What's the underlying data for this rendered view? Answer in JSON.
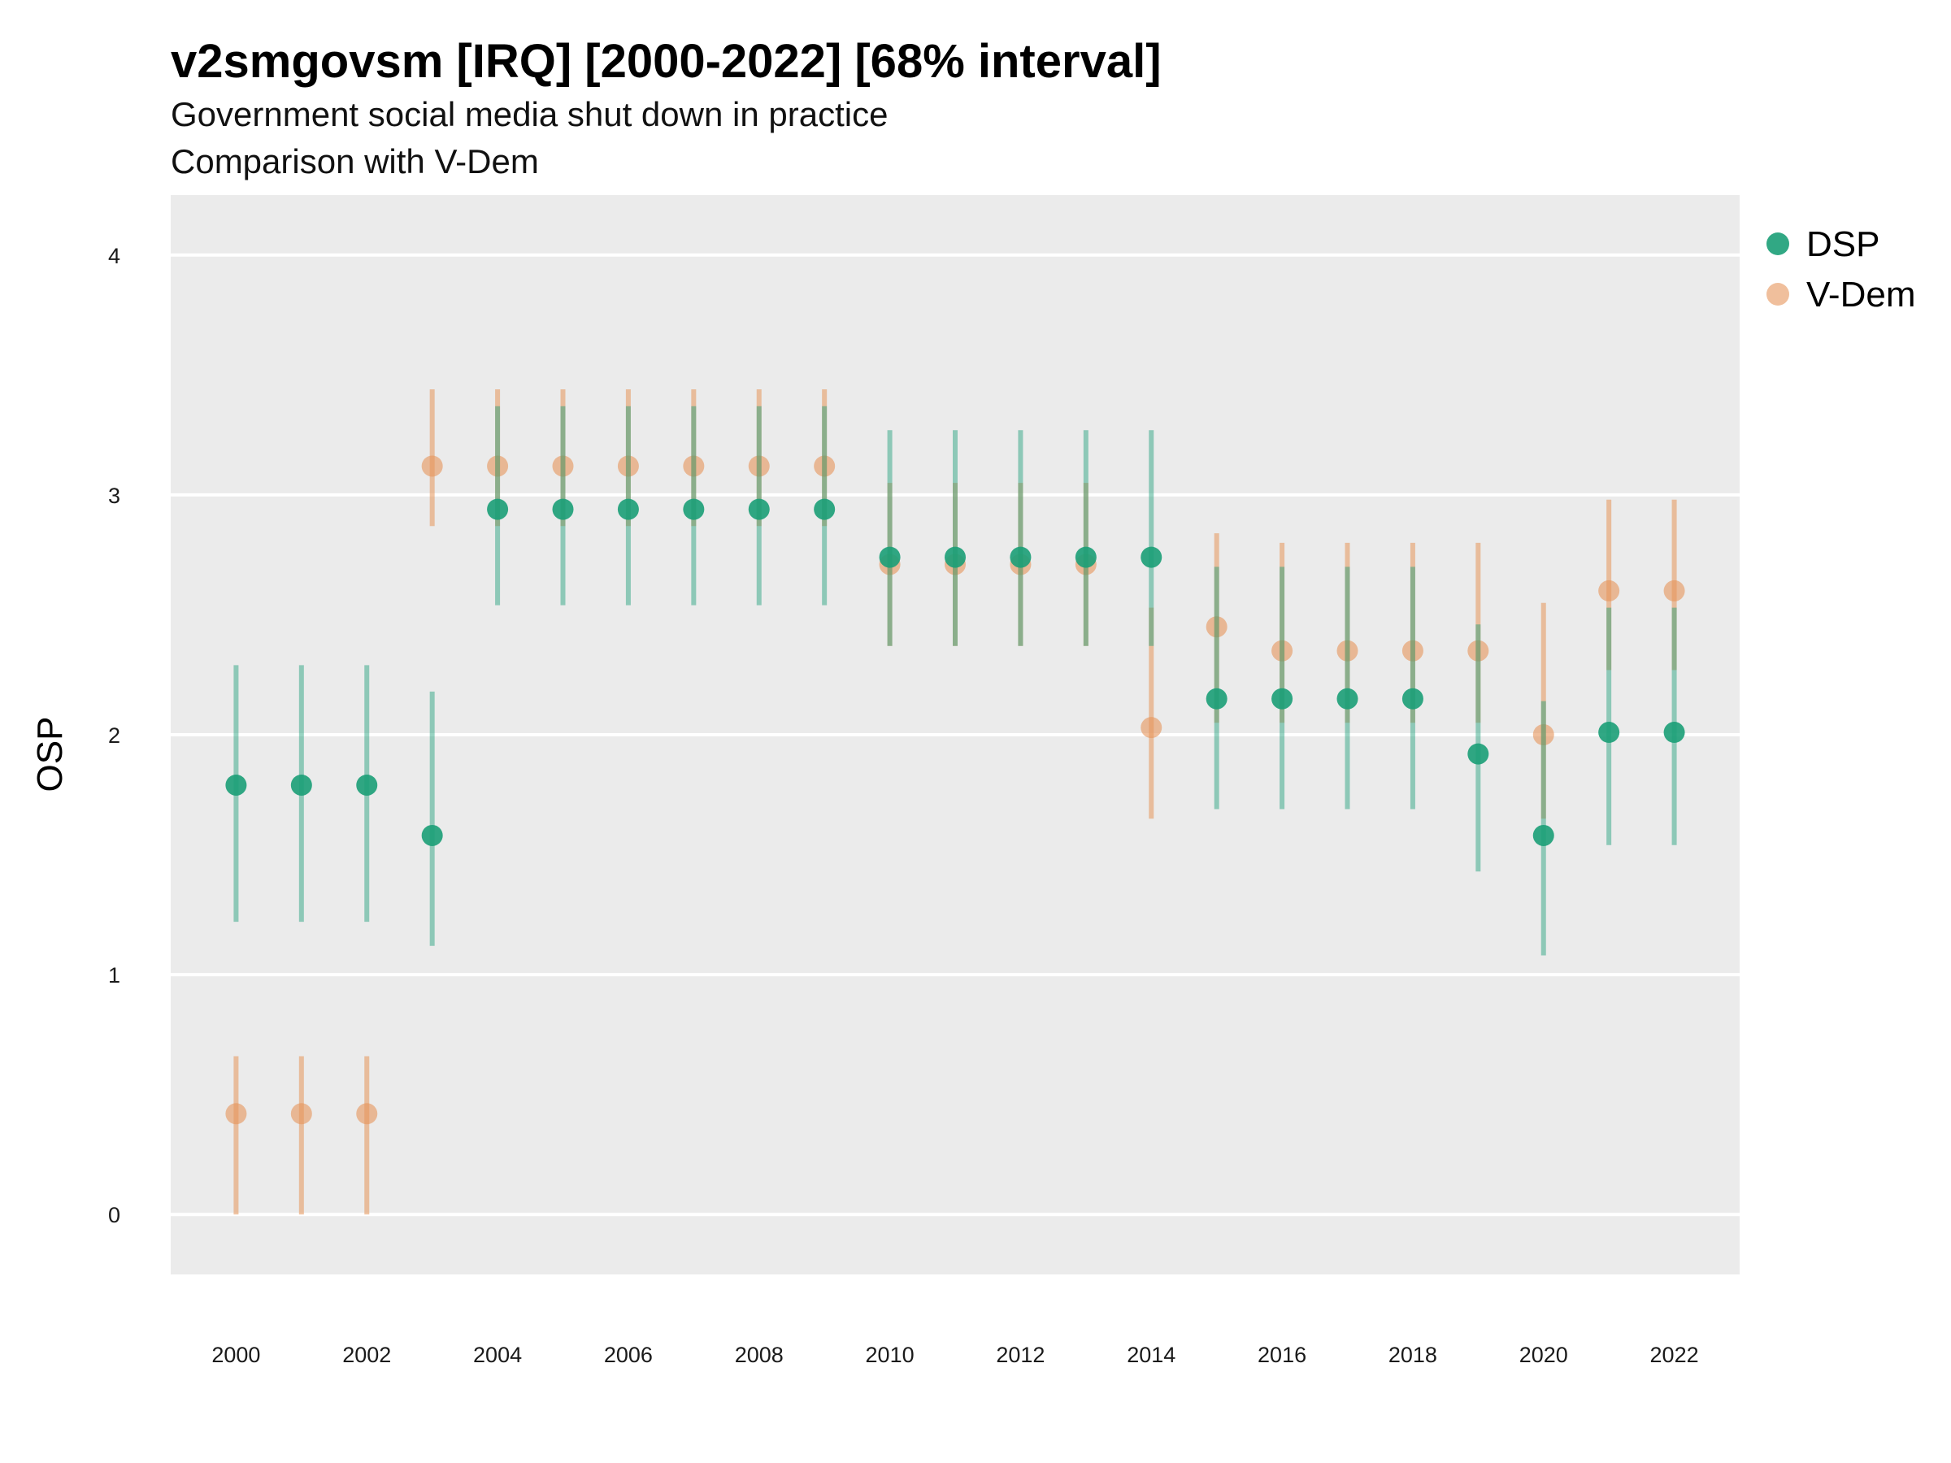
{
  "title": "v2smgovsm [IRQ] [2000-2022] [68% interval]",
  "subtitle_lines": [
    "Government social media shut down in practice",
    "Comparison with V-Dem"
  ],
  "colors": {
    "DSP": "#1b9e77",
    "V-Dem": "#e6955a",
    "panel": "#ebebeb",
    "grid": "#ffffff"
  },
  "chart_data": {
    "type": "scatter",
    "title": "v2smgovsm [IRQ] [2000-2022] [68% interval]",
    "subtitle": "Government social media shut down in practice / Comparison with V-Dem",
    "ylabel": "OSP",
    "xlabel": "",
    "ylim": [
      -0.25,
      4.25
    ],
    "yticks": [
      0,
      1,
      2,
      3,
      4
    ],
    "xticks": [
      2000,
      2002,
      2004,
      2006,
      2008,
      2010,
      2012,
      2014,
      2016,
      2018,
      2020,
      2022
    ],
    "grid": true,
    "legend_position": "right",
    "x": [
      2000,
      2001,
      2002,
      2003,
      2004,
      2005,
      2006,
      2007,
      2008,
      2009,
      2010,
      2011,
      2012,
      2013,
      2014,
      2015,
      2016,
      2017,
      2018,
      2019,
      2020,
      2021,
      2022
    ],
    "series": [
      {
        "name": "DSP",
        "color": "#1b9e77",
        "values": [
          1.79,
          1.79,
          1.79,
          1.58,
          2.94,
          2.94,
          2.94,
          2.94,
          2.94,
          2.94,
          2.74,
          2.74,
          2.74,
          2.74,
          2.74,
          2.15,
          2.15,
          2.15,
          2.15,
          1.92,
          1.58,
          2.01,
          2.01
        ],
        "lower": [
          1.22,
          1.22,
          1.22,
          1.12,
          2.54,
          2.54,
          2.54,
          2.54,
          2.54,
          2.54,
          2.37,
          2.37,
          2.37,
          2.37,
          2.37,
          1.69,
          1.69,
          1.69,
          1.69,
          1.43,
          1.08,
          1.54,
          1.54
        ],
        "upper": [
          2.29,
          2.29,
          2.29,
          2.18,
          3.37,
          3.37,
          3.37,
          3.37,
          3.37,
          3.37,
          3.27,
          3.27,
          3.27,
          3.27,
          3.27,
          2.7,
          2.7,
          2.7,
          2.7,
          2.46,
          2.14,
          2.53,
          2.53
        ]
      },
      {
        "name": "V-Dem",
        "color": "#e6955a",
        "values": [
          0.42,
          0.42,
          0.42,
          3.12,
          3.12,
          3.12,
          3.12,
          3.12,
          3.12,
          3.12,
          2.71,
          2.71,
          2.71,
          2.71,
          2.03,
          2.45,
          2.35,
          2.35,
          2.35,
          2.35,
          2.0,
          2.6,
          2.6
        ],
        "lower": [
          0.0,
          0.0,
          0.0,
          2.87,
          2.87,
          2.87,
          2.87,
          2.87,
          2.87,
          2.87,
          2.37,
          2.37,
          2.37,
          2.37,
          1.65,
          2.05,
          2.05,
          2.05,
          2.05,
          2.05,
          1.65,
          2.27,
          2.27
        ],
        "upper": [
          0.66,
          0.66,
          0.66,
          3.44,
          3.44,
          3.44,
          3.44,
          3.44,
          3.44,
          3.44,
          3.05,
          3.05,
          3.05,
          3.05,
          2.53,
          2.84,
          2.8,
          2.8,
          2.8,
          2.8,
          2.55,
          2.98,
          2.98
        ]
      }
    ]
  }
}
